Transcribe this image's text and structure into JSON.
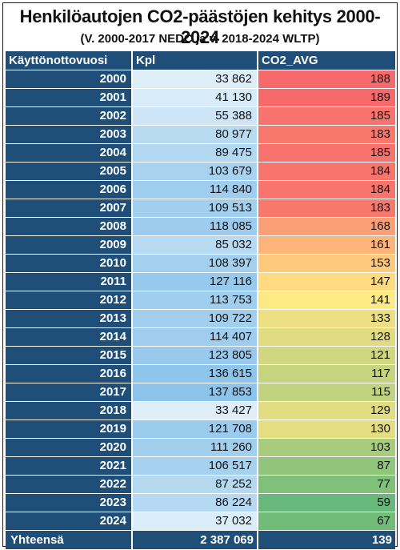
{
  "title": "Henkilöautojen CO2-päästöjen kehitys 2000-2024",
  "subtitle": "(V. 2000-2017 NEDC ja v. 2018-2024 WLTP)",
  "headers": {
    "year": "Käyttönottovuosi",
    "kpl": "Kpl",
    "co2": "CO2_AVG"
  },
  "rows": [
    {
      "year": "2000",
      "kpl": "33 862",
      "co2": "188",
      "kpl_color": "#ddeef9",
      "co2_color": "#f8696b"
    },
    {
      "year": "2001",
      "kpl": "41 130",
      "co2": "189",
      "kpl_color": "#d7ebf8",
      "co2_color": "#f8696b"
    },
    {
      "year": "2002",
      "kpl": "55 388",
      "co2": "185",
      "kpl_color": "#cde5f6",
      "co2_color": "#f8736d"
    },
    {
      "year": "2003",
      "kpl": "80 977",
      "co2": "183",
      "kpl_color": "#b9dbf2",
      "co2_color": "#f8786d"
    },
    {
      "year": "2004",
      "kpl": "89 475",
      "co2": "185",
      "kpl_color": "#b3d8f1",
      "co2_color": "#f8736d"
    },
    {
      "year": "2005",
      "kpl": "103 679",
      "co2": "184",
      "kpl_color": "#a8d2ef",
      "co2_color": "#f8756d"
    },
    {
      "year": "2006",
      "kpl": "114 840",
      "co2": "184",
      "kpl_color": "#9fcdee",
      "co2_color": "#f8756d"
    },
    {
      "year": "2007",
      "kpl": "109 513",
      "co2": "183",
      "kpl_color": "#a3cfee",
      "co2_color": "#f8786d"
    },
    {
      "year": "2008",
      "kpl": "118 085",
      "co2": "168",
      "kpl_color": "#9dccee",
      "co2_color": "#fba076"
    },
    {
      "year": "2009",
      "kpl": "85 032",
      "co2": "161",
      "kpl_color": "#b7daf2",
      "co2_color": "#fcb479"
    },
    {
      "year": "2010",
      "kpl": "108 397",
      "co2": "153",
      "kpl_color": "#a4d0ef",
      "co2_color": "#fdca7d"
    },
    {
      "year": "2011",
      "kpl": "127 116",
      "co2": "147",
      "kpl_color": "#96c9ec",
      "co2_color": "#fedb80"
    },
    {
      "year": "2012",
      "kpl": "113 753",
      "co2": "141",
      "kpl_color": "#a0ceee",
      "co2_color": "#feea83"
    },
    {
      "year": "2013",
      "kpl": "109 722",
      "co2": "133",
      "kpl_color": "#a3cfee",
      "co2_color": "#ecdf82"
    },
    {
      "year": "2014",
      "kpl": "114 407",
      "co2": "128",
      "kpl_color": "#a0cdee",
      "co2_color": "#e1dc81"
    },
    {
      "year": "2015",
      "kpl": "123 805",
      "co2": "121",
      "kpl_color": "#99caed",
      "co2_color": "#d0d780"
    },
    {
      "year": "2016",
      "kpl": "136 615",
      "co2": "117",
      "kpl_color": "#8ec5eb",
      "co2_color": "#c7d47f"
    },
    {
      "year": "2017",
      "kpl": "137 853",
      "co2": "115",
      "kpl_color": "#8dc4eb",
      "co2_color": "#c2d37f"
    },
    {
      "year": "2018",
      "kpl": "33 427",
      "co2": "129",
      "kpl_color": "#ddeef9",
      "co2_color": "#e3dd81"
    },
    {
      "year": "2019",
      "kpl": "121 708",
      "co2": "130",
      "kpl_color": "#9bcbed",
      "co2_color": "#e5dd81"
    },
    {
      "year": "2020",
      "kpl": "111 260",
      "co2": "103",
      "kpl_color": "#a2cfee",
      "co2_color": "#a8cc7d"
    },
    {
      "year": "2021",
      "kpl": "106 517",
      "co2": "87",
      "kpl_color": "#a6d1ef",
      "co2_color": "#91c57c"
    },
    {
      "year": "2022",
      "kpl": "87 252",
      "co2": "77",
      "kpl_color": "#b4d9f1",
      "co2_color": "#81c07b"
    },
    {
      "year": "2023",
      "kpl": "86 224",
      "co2": "59",
      "kpl_color": "#b5d9f2",
      "co2_color": "#67b87a"
    },
    {
      "year": "2024",
      "kpl": "37 032",
      "co2": "67",
      "kpl_color": "#dbedf9",
      "co2_color": "#72bc7a"
    }
  ],
  "total": {
    "label": "Yhteensä",
    "kpl": "2 387 069",
    "co2": "139"
  },
  "colors": {
    "header_bg": "#1f4e79",
    "header_text": "#ffffff"
  }
}
